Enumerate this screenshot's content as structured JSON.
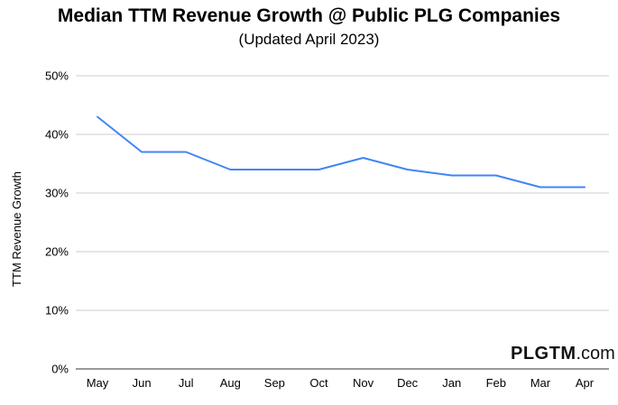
{
  "chart_data": {
    "type": "line",
    "title": "Median TTM Revenue Growth @ Public PLG Companies",
    "subtitle": "(Updated April 2023)",
    "ylabel": "TTM Revenue Growth",
    "xlabel": "",
    "categories": [
      "May",
      "Jun",
      "Jul",
      "Aug",
      "Sep",
      "Oct",
      "Nov",
      "Dec",
      "Jan",
      "Feb",
      "Mar",
      "Apr"
    ],
    "series": [
      {
        "values": [
          43,
          37,
          37,
          34,
          34,
          34,
          36,
          34,
          33,
          33,
          31,
          31
        ],
        "color": "#4285f4"
      }
    ],
    "ylim": [
      0,
      50
    ],
    "yticks": [
      "0%",
      "10%",
      "20%",
      "30%",
      "40%",
      "50%"
    ],
    "grid": true,
    "legend": "none"
  },
  "watermark": {
    "brand": "PLGTM",
    "tld": ".com"
  }
}
